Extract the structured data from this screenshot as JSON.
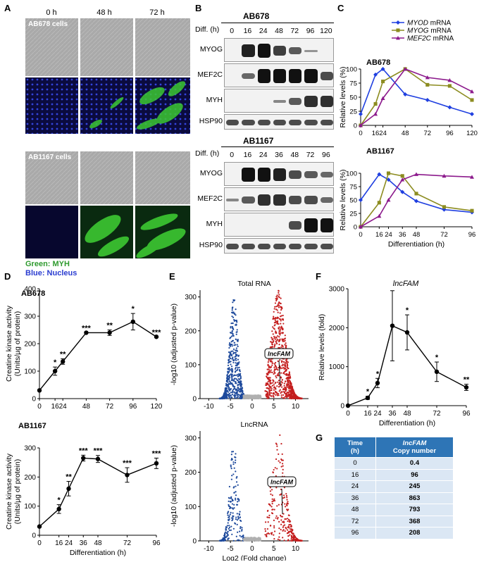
{
  "panels": {
    "A": "A",
    "B": "B",
    "C": "C",
    "D": "D",
    "E": "E",
    "F": "F",
    "G": "G"
  },
  "panel_a": {
    "time_labels": [
      "0 h",
      "48 h",
      "72 h"
    ],
    "cell_line_1": "AB678 cells",
    "cell_line_2": "AB1167 cells",
    "legend_green": "Green: MYH",
    "legend_blue": "Blue: Nucleus",
    "colors": {
      "phase": "#a8a8a8",
      "fluor_bg": "#0a0a3a",
      "myh": "#3cc832",
      "nucleus": "#2a3cd0"
    }
  },
  "panel_b": {
    "blot1": {
      "title": "AB678",
      "diff_label": "Diff. (h)",
      "times": [
        "0",
        "16",
        "24",
        "48",
        "72",
        "96",
        "120"
      ],
      "rows": [
        "MYOG",
        "MEF2C",
        "MYH",
        "HSP90"
      ]
    },
    "blot2": {
      "title": "AB1167",
      "diff_label": "Diff. (h)",
      "times": [
        "0",
        "16",
        "24",
        "36",
        "48",
        "72",
        "96"
      ],
      "rows": [
        "MYOG",
        "MEF2C",
        "MYH",
        "HSP90"
      ]
    }
  },
  "chart_data": [
    {
      "id": "C-top",
      "type": "line",
      "title": "AB678",
      "ylabel": "Relative levels (%)",
      "xlabel": "",
      "xlim": [
        0,
        120
      ],
      "ylim": [
        0,
        100
      ],
      "xticks": [
        0,
        16,
        24,
        48,
        72,
        96,
        120
      ],
      "yticks": [
        0,
        25,
        50,
        75,
        100
      ],
      "series": [
        {
          "name": "MYOD",
          "suffix": " mRNA",
          "color": "#1f3fe0",
          "marker": "diamond",
          "x": [
            0,
            16,
            24,
            48,
            72,
            96,
            120
          ],
          "y": [
            20,
            90,
            100,
            55,
            45,
            32,
            20
          ]
        },
        {
          "name": "MYOG",
          "suffix": " mRNA",
          "color": "#8c8c20",
          "marker": "square",
          "x": [
            0,
            16,
            24,
            48,
            72,
            96,
            120
          ],
          "y": [
            0,
            38,
            78,
            100,
            72,
            70,
            45
          ]
        },
        {
          "name": "MEF2C",
          "suffix": " mRNA",
          "color": "#8c1a8c",
          "marker": "triangle",
          "x": [
            0,
            16,
            24,
            48,
            72,
            96,
            120
          ],
          "y": [
            0,
            20,
            48,
            100,
            85,
            80,
            60
          ]
        }
      ]
    },
    {
      "id": "C-bottom",
      "type": "line",
      "title": "AB1167",
      "ylabel": "Relative levels (%)",
      "xlabel": "Differentiation (h)",
      "xlim": [
        0,
        96
      ],
      "ylim": [
        0,
        100
      ],
      "xticks": [
        0,
        16,
        24,
        36,
        48,
        72,
        96
      ],
      "yticks": [
        0,
        25,
        50,
        75,
        100
      ],
      "series": [
        {
          "name": "MYOD",
          "color": "#1f3fe0",
          "marker": "diamond",
          "x": [
            0,
            16,
            24,
            36,
            48,
            72,
            96
          ],
          "y": [
            50,
            98,
            88,
            65,
            48,
            32,
            27
          ]
        },
        {
          "name": "MYOG",
          "color": "#8c8c20",
          "marker": "square",
          "x": [
            0,
            16,
            24,
            36,
            48,
            72,
            96
          ],
          "y": [
            0,
            45,
            100,
            95,
            62,
            37,
            30
          ]
        },
        {
          "name": "MEF2C",
          "color": "#8c1a8c",
          "marker": "triangle",
          "x": [
            0,
            16,
            24,
            36,
            48,
            72,
            96
          ],
          "y": [
            0,
            20,
            50,
            88,
            98,
            95,
            93
          ]
        }
      ]
    },
    {
      "id": "D-top",
      "type": "line",
      "title": "AB678",
      "ylabel": "Creatine kinase activity (Units/µg of protein)",
      "xlabel": "",
      "xlim": [
        0,
        120
      ],
      "ylim": [
        0,
        400
      ],
      "xticks": [
        0,
        16,
        24,
        48,
        72,
        96,
        120
      ],
      "yticks": [
        0,
        100,
        200,
        300,
        400
      ],
      "series": [
        {
          "name": "",
          "x": [
            0,
            16,
            24,
            48,
            72,
            96,
            120
          ],
          "y": [
            30,
            100,
            135,
            240,
            240,
            280,
            225
          ],
          "err": [
            0,
            15,
            10,
            0,
            10,
            30,
            0
          ],
          "sig": [
            "",
            "*",
            "**",
            "***",
            "**",
            "*",
            "***"
          ]
        }
      ]
    },
    {
      "id": "D-bottom",
      "type": "line",
      "title": "AB1167",
      "ylabel": "Creatine kinase activity (Units/µg of protein)",
      "xlabel": "Differentiation (h)",
      "xlim": [
        0,
        96
      ],
      "ylim": [
        0,
        300
      ],
      "xticks": [
        0,
        16,
        24,
        36,
        48,
        72,
        96
      ],
      "yticks": [
        0,
        100,
        200,
        300
      ],
      "series": [
        {
          "name": "",
          "x": [
            0,
            16,
            24,
            36,
            48,
            72,
            96
          ],
          "y": [
            30,
            90,
            160,
            265,
            262,
            207,
            247
          ],
          "err": [
            0,
            15,
            25,
            10,
            12,
            25,
            18
          ],
          "sig": [
            "",
            "*",
            "**",
            "***",
            "***",
            "***",
            "***"
          ]
        }
      ]
    },
    {
      "id": "E-top",
      "type": "scatter",
      "title": "Total RNA",
      "ylabel": "-log10 (adjusted p-value)",
      "xlabel": "",
      "xlim": [
        -12,
        13
      ],
      "ylim": [
        0,
        320
      ],
      "xticks": [
        -10,
        -5,
        0,
        5,
        10
      ],
      "yticks": [
        0,
        100,
        200,
        300
      ],
      "annotation": "lncFAM",
      "colors": {
        "down": "#1e4a9c",
        "up": "#c41e1e",
        "ns": "#b0b0b0"
      }
    },
    {
      "id": "E-bottom",
      "type": "scatter",
      "title": "LncRNA",
      "ylabel": "-log10 (adjusted p-value)",
      "xlabel": "Log2 (Fold change)",
      "xlim": [
        -12,
        13
      ],
      "ylim": [
        0,
        320
      ],
      "xticks": [
        -10,
        -5,
        0,
        5,
        10
      ],
      "yticks": [
        0,
        100,
        200,
        300
      ],
      "annotation": "lncFAM",
      "colors": {
        "down": "#1e4a9c",
        "up": "#c41e1e",
        "ns": "#b0b0b0"
      }
    },
    {
      "id": "F",
      "type": "line",
      "title": "lncFAM",
      "ylabel": "Relative levels (fold)",
      "xlabel": "Differentiation (h)",
      "xlim": [
        0,
        96
      ],
      "ylim": [
        0,
        3000
      ],
      "xticks": [
        0,
        16,
        24,
        36,
        48,
        72,
        96
      ],
      "yticks": [
        0,
        1000,
        2000,
        3000
      ],
      "series": [
        {
          "name": "",
          "x": [
            0,
            16,
            24,
            36,
            48,
            72,
            96
          ],
          "y": [
            0,
            200,
            580,
            2050,
            1880,
            870,
            470
          ],
          "err": [
            0,
            40,
            120,
            900,
            450,
            250,
            80
          ],
          "sig": [
            "",
            "*",
            "*",
            "",
            "*",
            "*",
            "**"
          ]
        }
      ]
    }
  ],
  "panel_g": {
    "headers": [
      "Time\n(h)",
      "lncFAM\nCopy number"
    ],
    "header_time": "Time",
    "header_time_unit": "(h)",
    "header_gene": "lncFAM",
    "header_copy": "Copy number",
    "rows": [
      [
        "0",
        "0.4"
      ],
      [
        "16",
        "96"
      ],
      [
        "24",
        "245"
      ],
      [
        "36",
        "863"
      ],
      [
        "48",
        "793"
      ],
      [
        "72",
        "368"
      ],
      [
        "96",
        "208"
      ]
    ]
  }
}
